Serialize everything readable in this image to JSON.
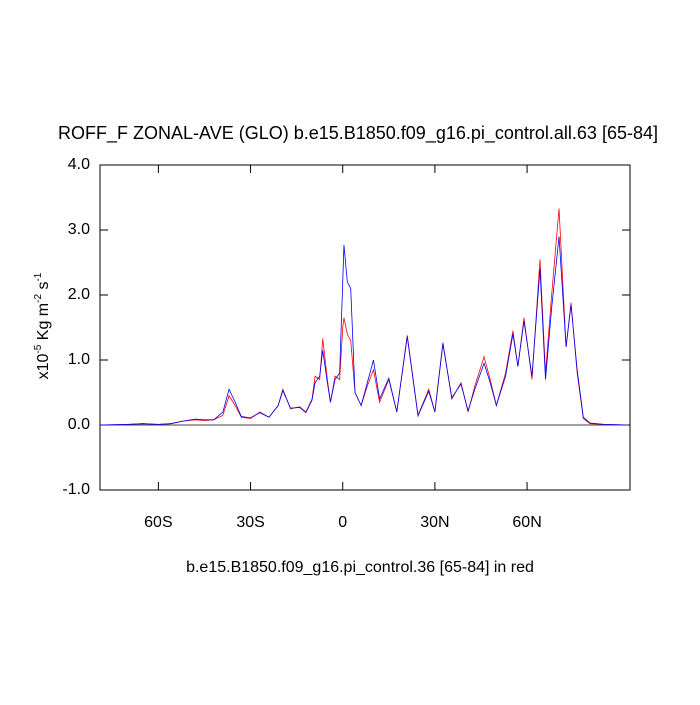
{
  "chart_data": {
    "type": "line",
    "title": "ROFF_F ZONAL-AVE (GLO) b.e15.B1850.f09_g16.pi_control.all.63 [65-84]",
    "x_label": "b.e15.B1850.f09_g16.pi_control.36 [65-84] in red",
    "y_label_parts": [
      "x10",
      "-5",
      " Kg m",
      "-2",
      " s",
      "-1"
    ],
    "x": [
      -79,
      -70,
      -65,
      -60,
      -56,
      -52,
      -48,
      -45,
      -42,
      -39,
      -37,
      -35,
      -33,
      -30,
      -27,
      -24,
      -21,
      -19.5,
      -17,
      -14,
      -12,
      -10,
      -9,
      -7.5,
      -6.5,
      -5,
      -4,
      -2.5,
      -1,
      0,
      0.4,
      1.5,
      2.6,
      4,
      6,
      8,
      10,
      12,
      15,
      17.6,
      21,
      24.5,
      28,
      30,
      32.6,
      35.5,
      38.5,
      40.8,
      43,
      46,
      48,
      50,
      53,
      55.4,
      57,
      59,
      61.6,
      64.2,
      66,
      68,
      70.4,
      72.7,
      74.3,
      76.3,
      78.3,
      80.5,
      85,
      93
    ],
    "series": [
      {
        "color": "#ff0000",
        "values": [
          0,
          0.01,
          0.02,
          0.01,
          0.02,
          0.06,
          0.08,
          0.07,
          0.08,
          0.15,
          0.45,
          0.3,
          0.12,
          0.1,
          0.2,
          0.12,
          0.3,
          0.55,
          0.25,
          0.28,
          0.2,
          0.4,
          0.75,
          0.7,
          1.33,
          0.7,
          0.35,
          0.75,
          0.7,
          1.5,
          1.65,
          1.4,
          1.3,
          0.5,
          0.3,
          0.6,
          0.85,
          0.35,
          0.7,
          0.2,
          1.38,
          0.15,
          0.55,
          0.2,
          1.27,
          0.4,
          0.65,
          0.2,
          0.6,
          1.05,
          0.7,
          0.3,
          0.8,
          1.45,
          0.9,
          1.65,
          0.7,
          2.55,
          0.8,
          2.0,
          3.33,
          1.2,
          1.88,
          0.8,
          0.1,
          0.02,
          0.01,
          0
        ]
      },
      {
        "color": "#0000ff",
        "values": [
          0,
          0.01,
          0.02,
          0.01,
          0.02,
          0.06,
          0.09,
          0.08,
          0.08,
          0.2,
          0.55,
          0.35,
          0.13,
          0.11,
          0.19,
          0.12,
          0.3,
          0.53,
          0.26,
          0.27,
          0.19,
          0.38,
          0.65,
          0.75,
          1.15,
          0.65,
          0.35,
          0.7,
          0.8,
          2.2,
          2.77,
          2.2,
          2.1,
          0.5,
          0.3,
          0.65,
          1.0,
          0.4,
          0.72,
          0.2,
          1.36,
          0.14,
          0.52,
          0.2,
          1.25,
          0.42,
          0.63,
          0.22,
          0.55,
          0.95,
          0.65,
          0.3,
          0.75,
          1.4,
          0.9,
          1.6,
          0.75,
          2.4,
          0.7,
          1.8,
          2.9,
          1.2,
          1.85,
          0.85,
          0.12,
          0.03,
          0.01,
          0
        ]
      }
    ],
    "xlim": [
      -79,
      93.5
    ],
    "xticks": [
      {
        "value": -60,
        "label": "60S"
      },
      {
        "value": -30,
        "label": "30S"
      },
      0,
      {
        "value": 30,
        "label": "30N"
      },
      {
        "value": 60,
        "label": "60N"
      }
    ],
    "ylim": [
      -1,
      4
    ],
    "yticks": [
      {
        "value": -1,
        "label": "-1.0"
      },
      {
        "value": 0,
        "label": "0.0"
      },
      {
        "value": 1,
        "label": "1.0"
      },
      {
        "value": 2,
        "label": "2.0"
      },
      {
        "value": 3,
        "label": "3.0"
      },
      {
        "value": 4,
        "label": "4.0"
      }
    ]
  }
}
